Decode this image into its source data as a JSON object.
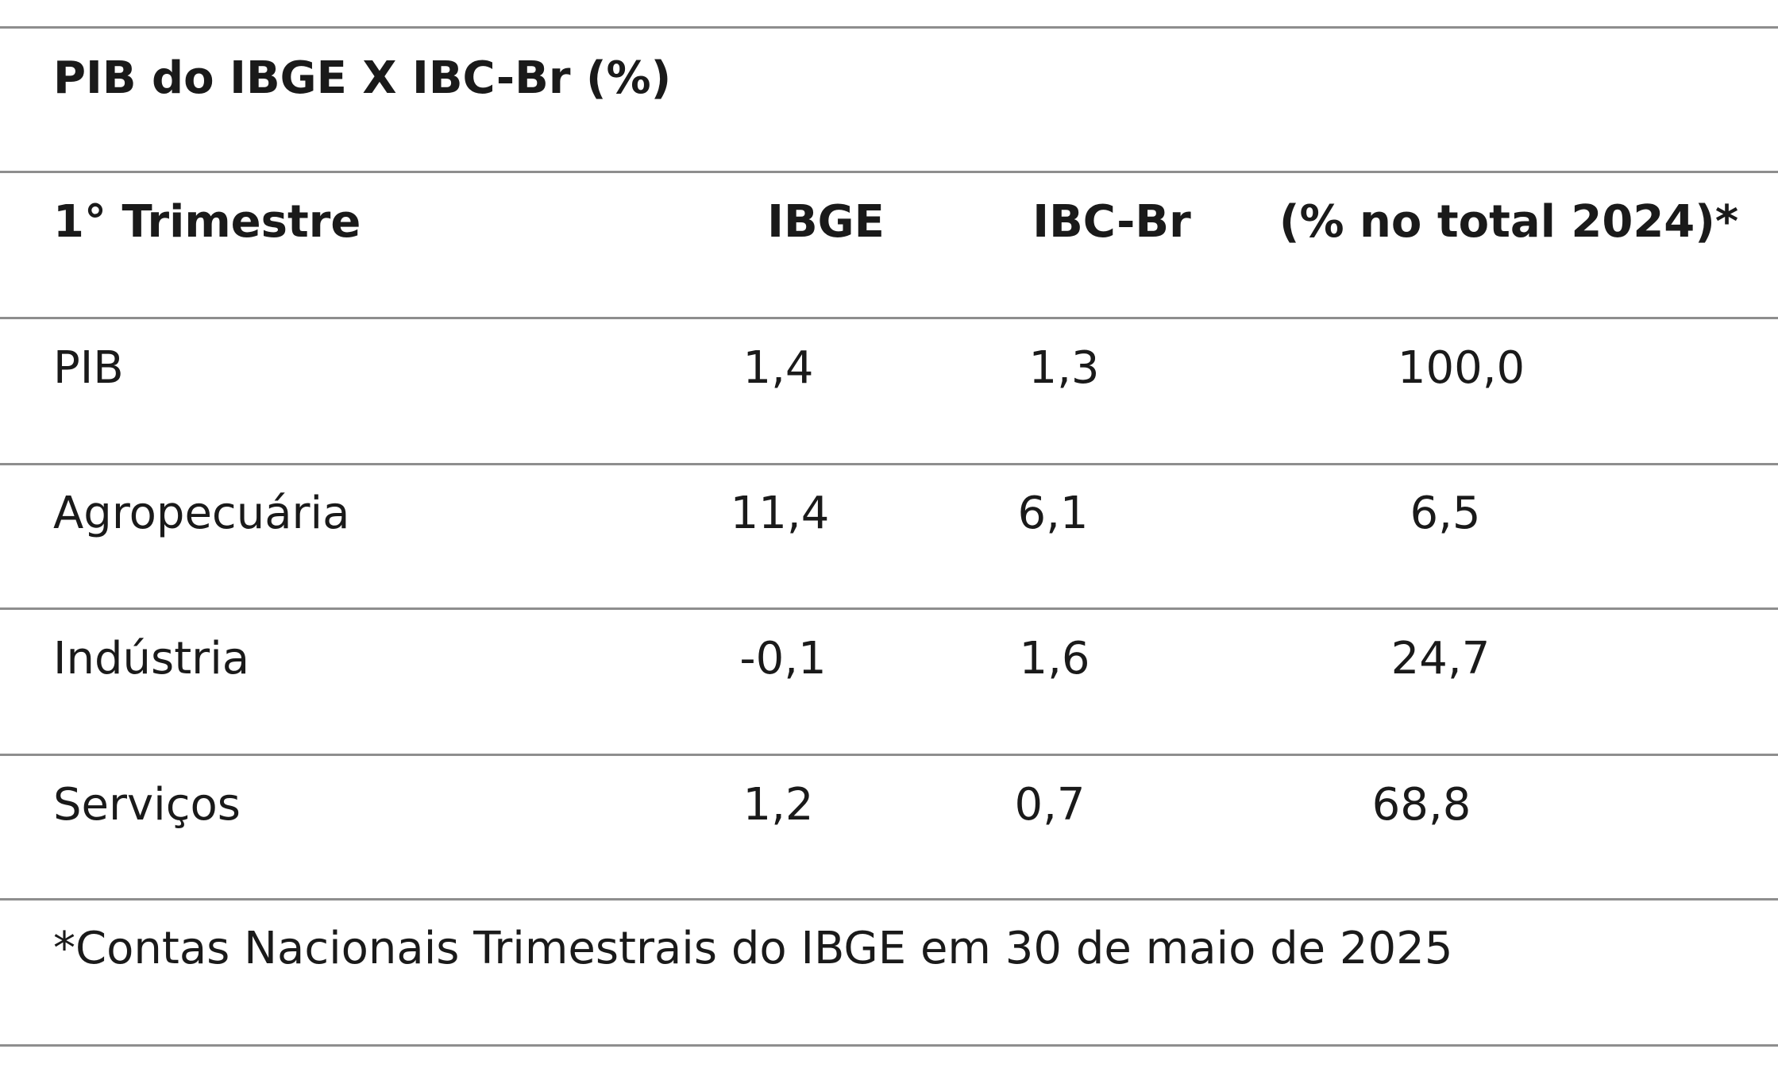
{
  "table": {
    "title": "PIB do IBGE X IBC-Br (%)",
    "headers": {
      "period": "1° Trimestre",
      "ibge": "IBGE",
      "ibcbr": "IBC-Br",
      "share": "(% no total 2024)*"
    },
    "rows": [
      {
        "label": "PIB",
        "ibge": "1,4",
        "ibcbr": "1,3",
        "share": "100,0"
      },
      {
        "label": "Agropecuária",
        "ibge": "11,4",
        "ibcbr": "6,1",
        "share": "6,5"
      },
      {
        "label": "Indústria",
        "ibge": "-0,1",
        "ibcbr": "1,6",
        "share": "24,7"
      },
      {
        "label": "Serviços",
        "ibge": "1,2",
        "ibcbr": "0,7",
        "share": "68,8"
      }
    ],
    "footnote": "*Contas Nacionais Trimestrais do IBGE em 30 de maio de 2025"
  }
}
